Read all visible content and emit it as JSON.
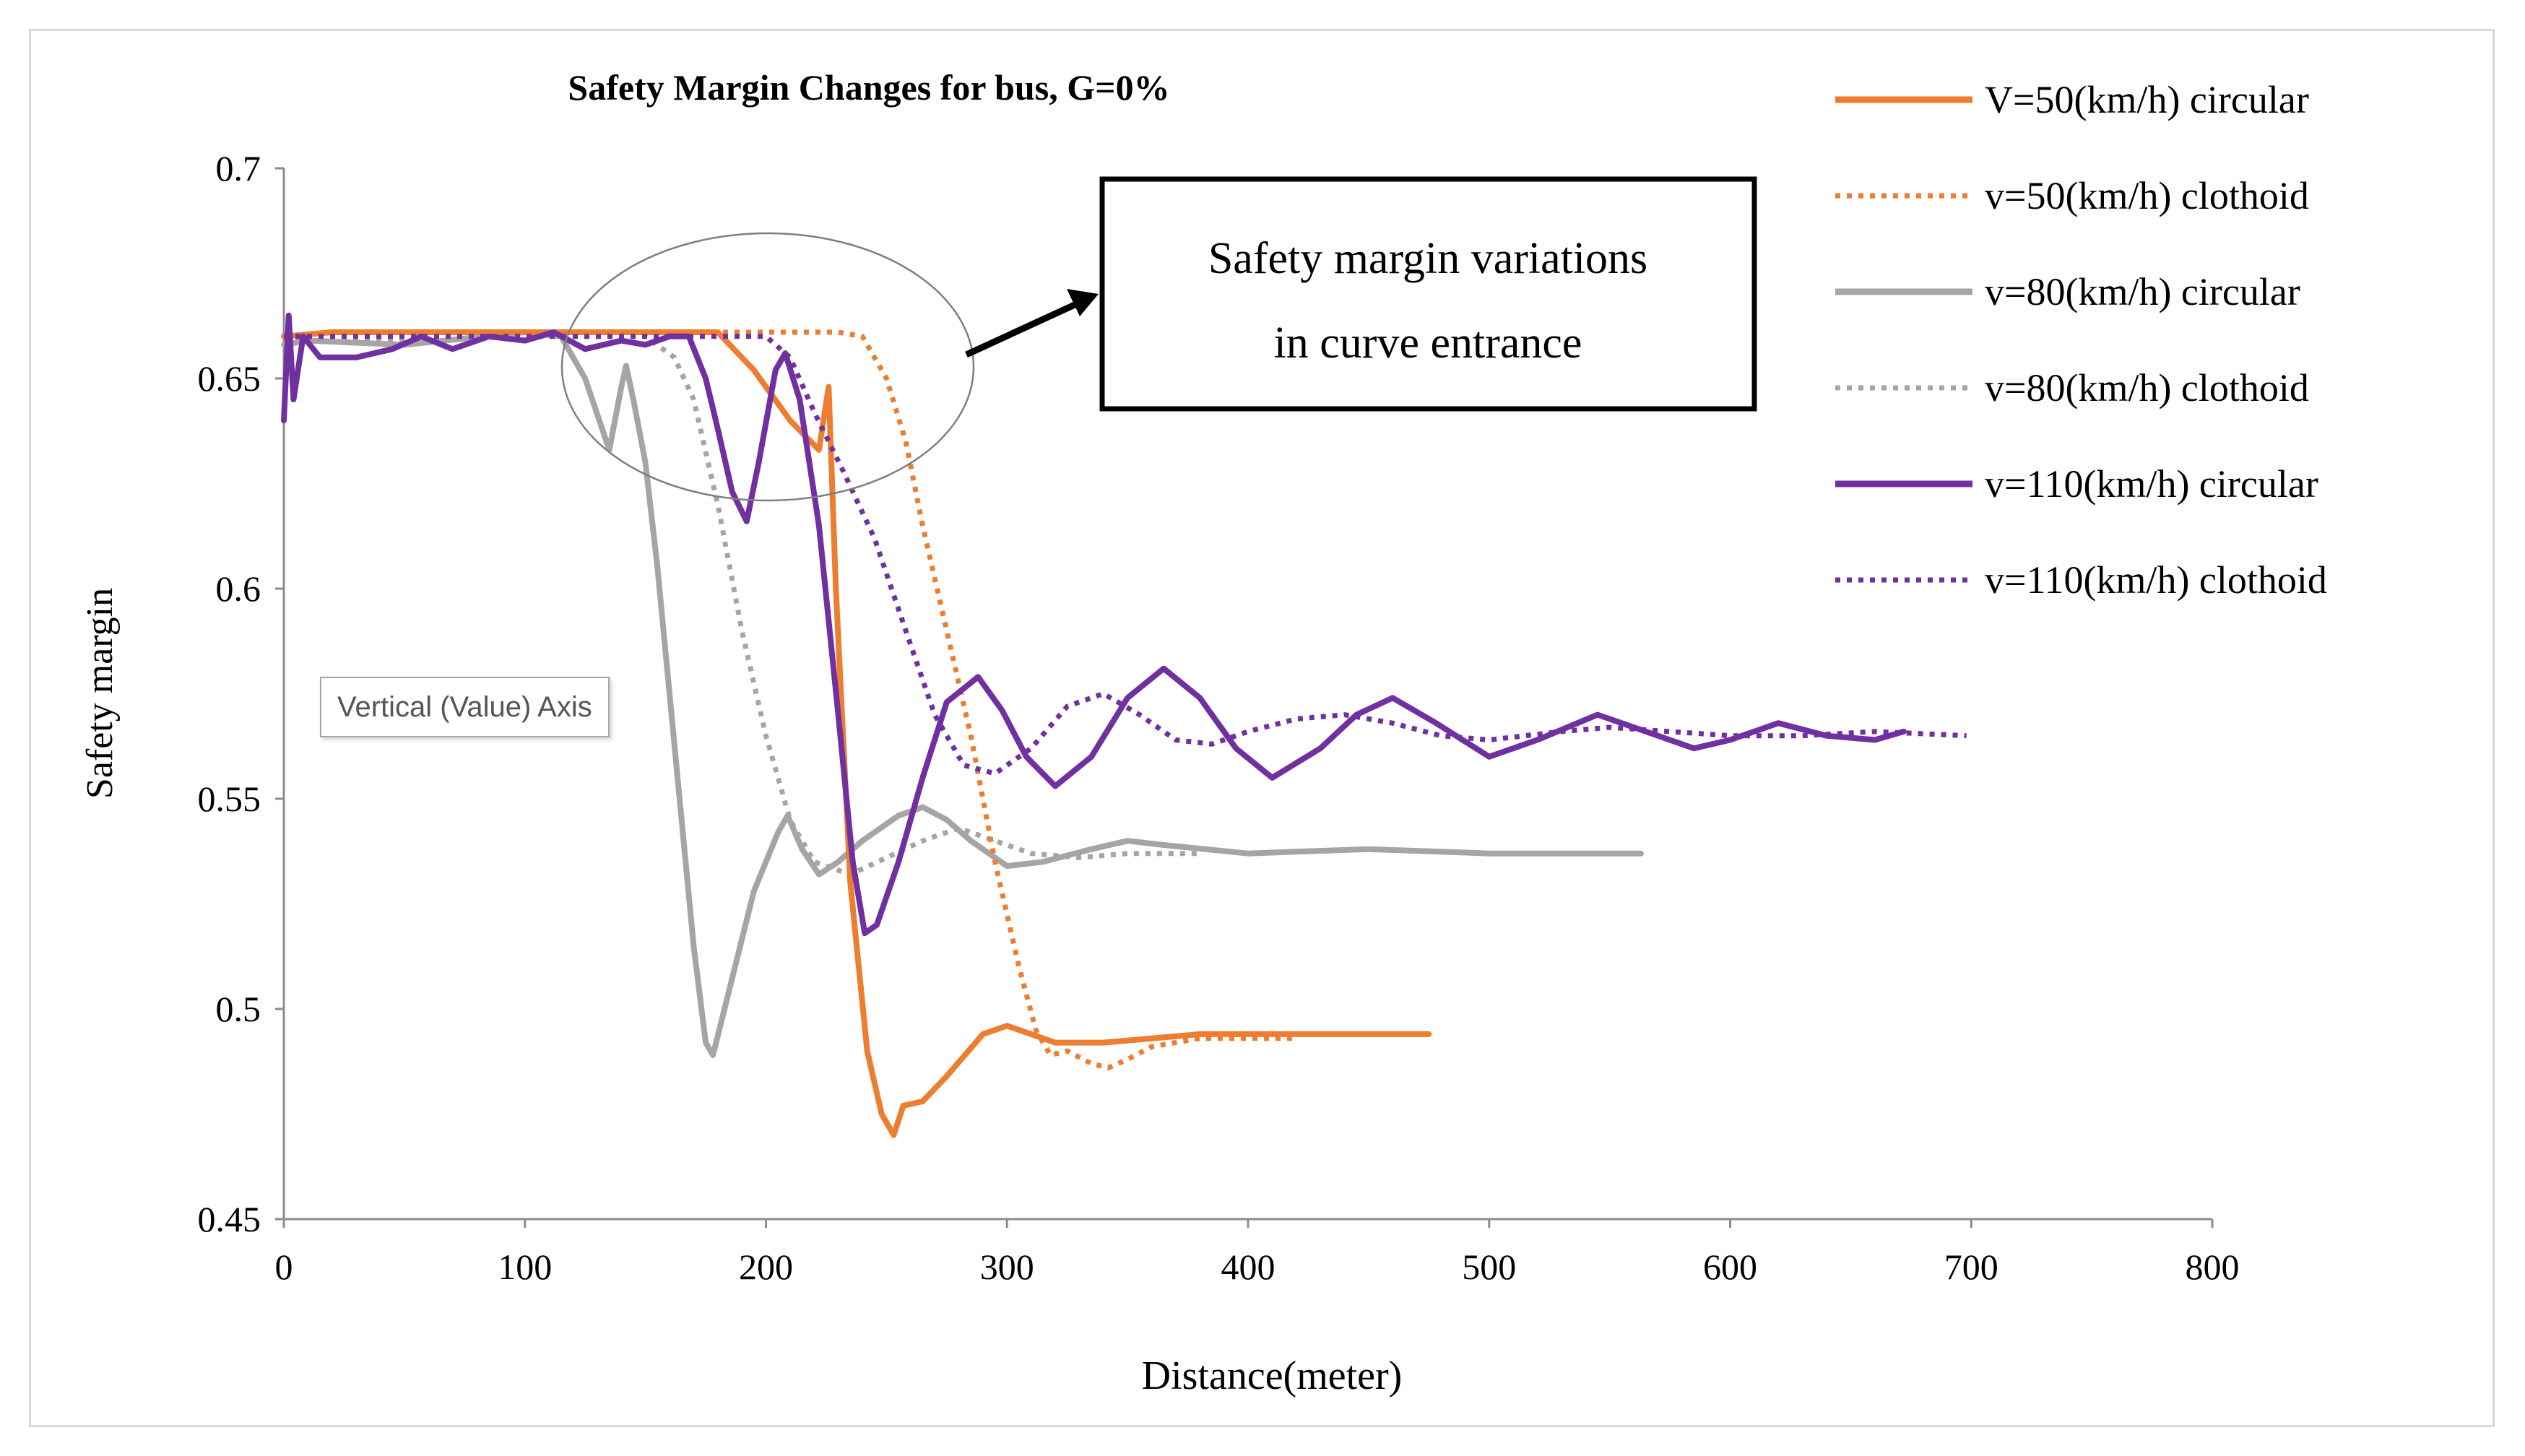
{
  "chart_data": {
    "type": "line",
    "title": "Safety Margin Changes for bus, G=0%",
    "xlabel": "Distance(meter)",
    "ylabel": "Safety margin",
    "xlim": [
      0,
      800
    ],
    "ylim": [
      0.45,
      0.7
    ],
    "xticks": [
      "0",
      "100",
      "200",
      "300",
      "400",
      "500",
      "600",
      "700",
      "800"
    ],
    "yticks": [
      "0.45",
      "0.5",
      "0.55",
      "0.6",
      "0.65",
      "0.7"
    ],
    "grid": false,
    "legend_position": "top-right",
    "annotation": {
      "line1": "Safety margin variations",
      "line2": "in curve entrance"
    },
    "tooltip": "Vertical (Value) Axis",
    "series": [
      {
        "name": "V=50(km/h) circular",
        "color": "#ED7D31",
        "dash": false,
        "points": [
          [
            0,
            0.66
          ],
          [
            20,
            0.661
          ],
          [
            100,
            0.661
          ],
          [
            180,
            0.661
          ],
          [
            195,
            0.652
          ],
          [
            210,
            0.64
          ],
          [
            222,
            0.633
          ],
          [
            226,
            0.648
          ],
          [
            229,
            0.6
          ],
          [
            235,
            0.53
          ],
          [
            242,
            0.49
          ],
          [
            248,
            0.475
          ],
          [
            253,
            0.47
          ],
          [
            257,
            0.477
          ],
          [
            265,
            0.478
          ],
          [
            275,
            0.484
          ],
          [
            290,
            0.494
          ],
          [
            300,
            0.496
          ],
          [
            310,
            0.494
          ],
          [
            320,
            0.492
          ],
          [
            340,
            0.492
          ],
          [
            380,
            0.494
          ],
          [
            430,
            0.494
          ],
          [
            475,
            0.494
          ]
        ]
      },
      {
        "name": "v=50(km/h) clothoid",
        "color": "#ED7D31",
        "dash": true,
        "points": [
          [
            0,
            0.66
          ],
          [
            100,
            0.661
          ],
          [
            230,
            0.661
          ],
          [
            240,
            0.66
          ],
          [
            250,
            0.65
          ],
          [
            258,
            0.635
          ],
          [
            265,
            0.615
          ],
          [
            275,
            0.59
          ],
          [
            285,
            0.565
          ],
          [
            295,
            0.535
          ],
          [
            305,
            0.51
          ],
          [
            312,
            0.495
          ],
          [
            318,
            0.489
          ],
          [
            325,
            0.49
          ],
          [
            335,
            0.487
          ],
          [
            342,
            0.486
          ],
          [
            350,
            0.488
          ],
          [
            360,
            0.491
          ],
          [
            380,
            0.493
          ],
          [
            420,
            0.493
          ]
        ]
      },
      {
        "name": "v=80(km/h) circular",
        "color": "#A5A5A5",
        "dash": false,
        "points": [
          [
            0,
            0.658
          ],
          [
            10,
            0.659
          ],
          [
            50,
            0.658
          ],
          [
            100,
            0.661
          ],
          [
            115,
            0.66
          ],
          [
            125,
            0.65
          ],
          [
            135,
            0.633
          ],
          [
            140,
            0.648
          ],
          [
            142,
            0.653
          ],
          [
            145,
            0.645
          ],
          [
            150,
            0.63
          ],
          [
            155,
            0.605
          ],
          [
            160,
            0.575
          ],
          [
            165,
            0.545
          ],
          [
            170,
            0.515
          ],
          [
            175,
            0.492
          ],
          [
            178,
            0.489
          ],
          [
            185,
            0.505
          ],
          [
            195,
            0.528
          ],
          [
            205,
            0.542
          ],
          [
            209,
            0.546
          ],
          [
            215,
            0.538
          ],
          [
            222,
            0.532
          ],
          [
            230,
            0.535
          ],
          [
            240,
            0.54
          ],
          [
            255,
            0.546
          ],
          [
            265,
            0.548
          ],
          [
            275,
            0.545
          ],
          [
            285,
            0.54
          ],
          [
            300,
            0.534
          ],
          [
            315,
            0.535
          ],
          [
            335,
            0.538
          ],
          [
            350,
            0.54
          ],
          [
            365,
            0.539
          ],
          [
            400,
            0.537
          ],
          [
            450,
            0.538
          ],
          [
            500,
            0.537
          ],
          [
            563,
            0.537
          ]
        ]
      },
      {
        "name": "v=80(km/h) clothoid",
        "color": "#A5A5A5",
        "dash": true,
        "points": [
          [
            0,
            0.659
          ],
          [
            50,
            0.659
          ],
          [
            100,
            0.66
          ],
          [
            150,
            0.66
          ],
          [
            162,
            0.655
          ],
          [
            170,
            0.645
          ],
          [
            180,
            0.62
          ],
          [
            190,
            0.59
          ],
          [
            200,
            0.565
          ],
          [
            210,
            0.545
          ],
          [
            220,
            0.535
          ],
          [
            235,
            0.532
          ],
          [
            250,
            0.536
          ],
          [
            265,
            0.54
          ],
          [
            280,
            0.543
          ],
          [
            295,
            0.54
          ],
          [
            310,
            0.537
          ],
          [
            330,
            0.536
          ],
          [
            350,
            0.537
          ],
          [
            380,
            0.537
          ]
        ]
      },
      {
        "name": "v=110(km/h) circular",
        "color": "#7030A0",
        "dash": false,
        "points": [
          [
            0,
            0.64
          ],
          [
            2,
            0.665
          ],
          [
            4,
            0.645
          ],
          [
            8,
            0.66
          ],
          [
            15,
            0.655
          ],
          [
            30,
            0.655
          ],
          [
            45,
            0.657
          ],
          [
            57,
            0.66
          ],
          [
            70,
            0.657
          ],
          [
            85,
            0.66
          ],
          [
            100,
            0.659
          ],
          [
            112,
            0.661
          ],
          [
            125,
            0.657
          ],
          [
            140,
            0.659
          ],
          [
            150,
            0.658
          ],
          [
            160,
            0.66
          ],
          [
            168,
            0.66
          ],
          [
            175,
            0.65
          ],
          [
            180,
            0.638
          ],
          [
            186,
            0.623
          ],
          [
            192,
            0.616
          ],
          [
            197,
            0.63
          ],
          [
            204,
            0.652
          ],
          [
            208,
            0.656
          ],
          [
            214,
            0.645
          ],
          [
            222,
            0.615
          ],
          [
            230,
            0.57
          ],
          [
            236,
            0.535
          ],
          [
            241,
            0.518
          ],
          [
            246,
            0.52
          ],
          [
            255,
            0.535
          ],
          [
            265,
            0.555
          ],
          [
            275,
            0.573
          ],
          [
            288,
            0.579
          ],
          [
            298,
            0.571
          ],
          [
            308,
            0.56
          ],
          [
            320,
            0.553
          ],
          [
            335,
            0.56
          ],
          [
            350,
            0.574
          ],
          [
            365,
            0.581
          ],
          [
            380,
            0.574
          ],
          [
            395,
            0.562
          ],
          [
            410,
            0.555
          ],
          [
            430,
            0.562
          ],
          [
            445,
            0.57
          ],
          [
            460,
            0.574
          ],
          [
            478,
            0.568
          ],
          [
            500,
            0.56
          ],
          [
            520,
            0.564
          ],
          [
            545,
            0.57
          ],
          [
            565,
            0.566
          ],
          [
            585,
            0.562
          ],
          [
            600,
            0.564
          ],
          [
            620,
            0.568
          ],
          [
            640,
            0.565
          ],
          [
            660,
            0.564
          ],
          [
            672,
            0.566
          ]
        ]
      },
      {
        "name": "v=110(km/h) clothoid",
        "color": "#7030A0",
        "dash": true,
        "points": [
          [
            0,
            0.66
          ],
          [
            100,
            0.66
          ],
          [
            200,
            0.66
          ],
          [
            210,
            0.655
          ],
          [
            220,
            0.642
          ],
          [
            232,
            0.628
          ],
          [
            245,
            0.612
          ],
          [
            258,
            0.59
          ],
          [
            270,
            0.57
          ],
          [
            282,
            0.558
          ],
          [
            295,
            0.556
          ],
          [
            310,
            0.562
          ],
          [
            325,
            0.572
          ],
          [
            340,
            0.575
          ],
          [
            355,
            0.57
          ],
          [
            370,
            0.564
          ],
          [
            385,
            0.563
          ],
          [
            400,
            0.566
          ],
          [
            420,
            0.569
          ],
          [
            440,
            0.57
          ],
          [
            460,
            0.568
          ],
          [
            480,
            0.565
          ],
          [
            500,
            0.564
          ],
          [
            530,
            0.566
          ],
          [
            550,
            0.567
          ],
          [
            575,
            0.566
          ],
          [
            600,
            0.565
          ],
          [
            630,
            0.565
          ],
          [
            660,
            0.566
          ],
          [
            698,
            0.565
          ]
        ]
      }
    ]
  }
}
